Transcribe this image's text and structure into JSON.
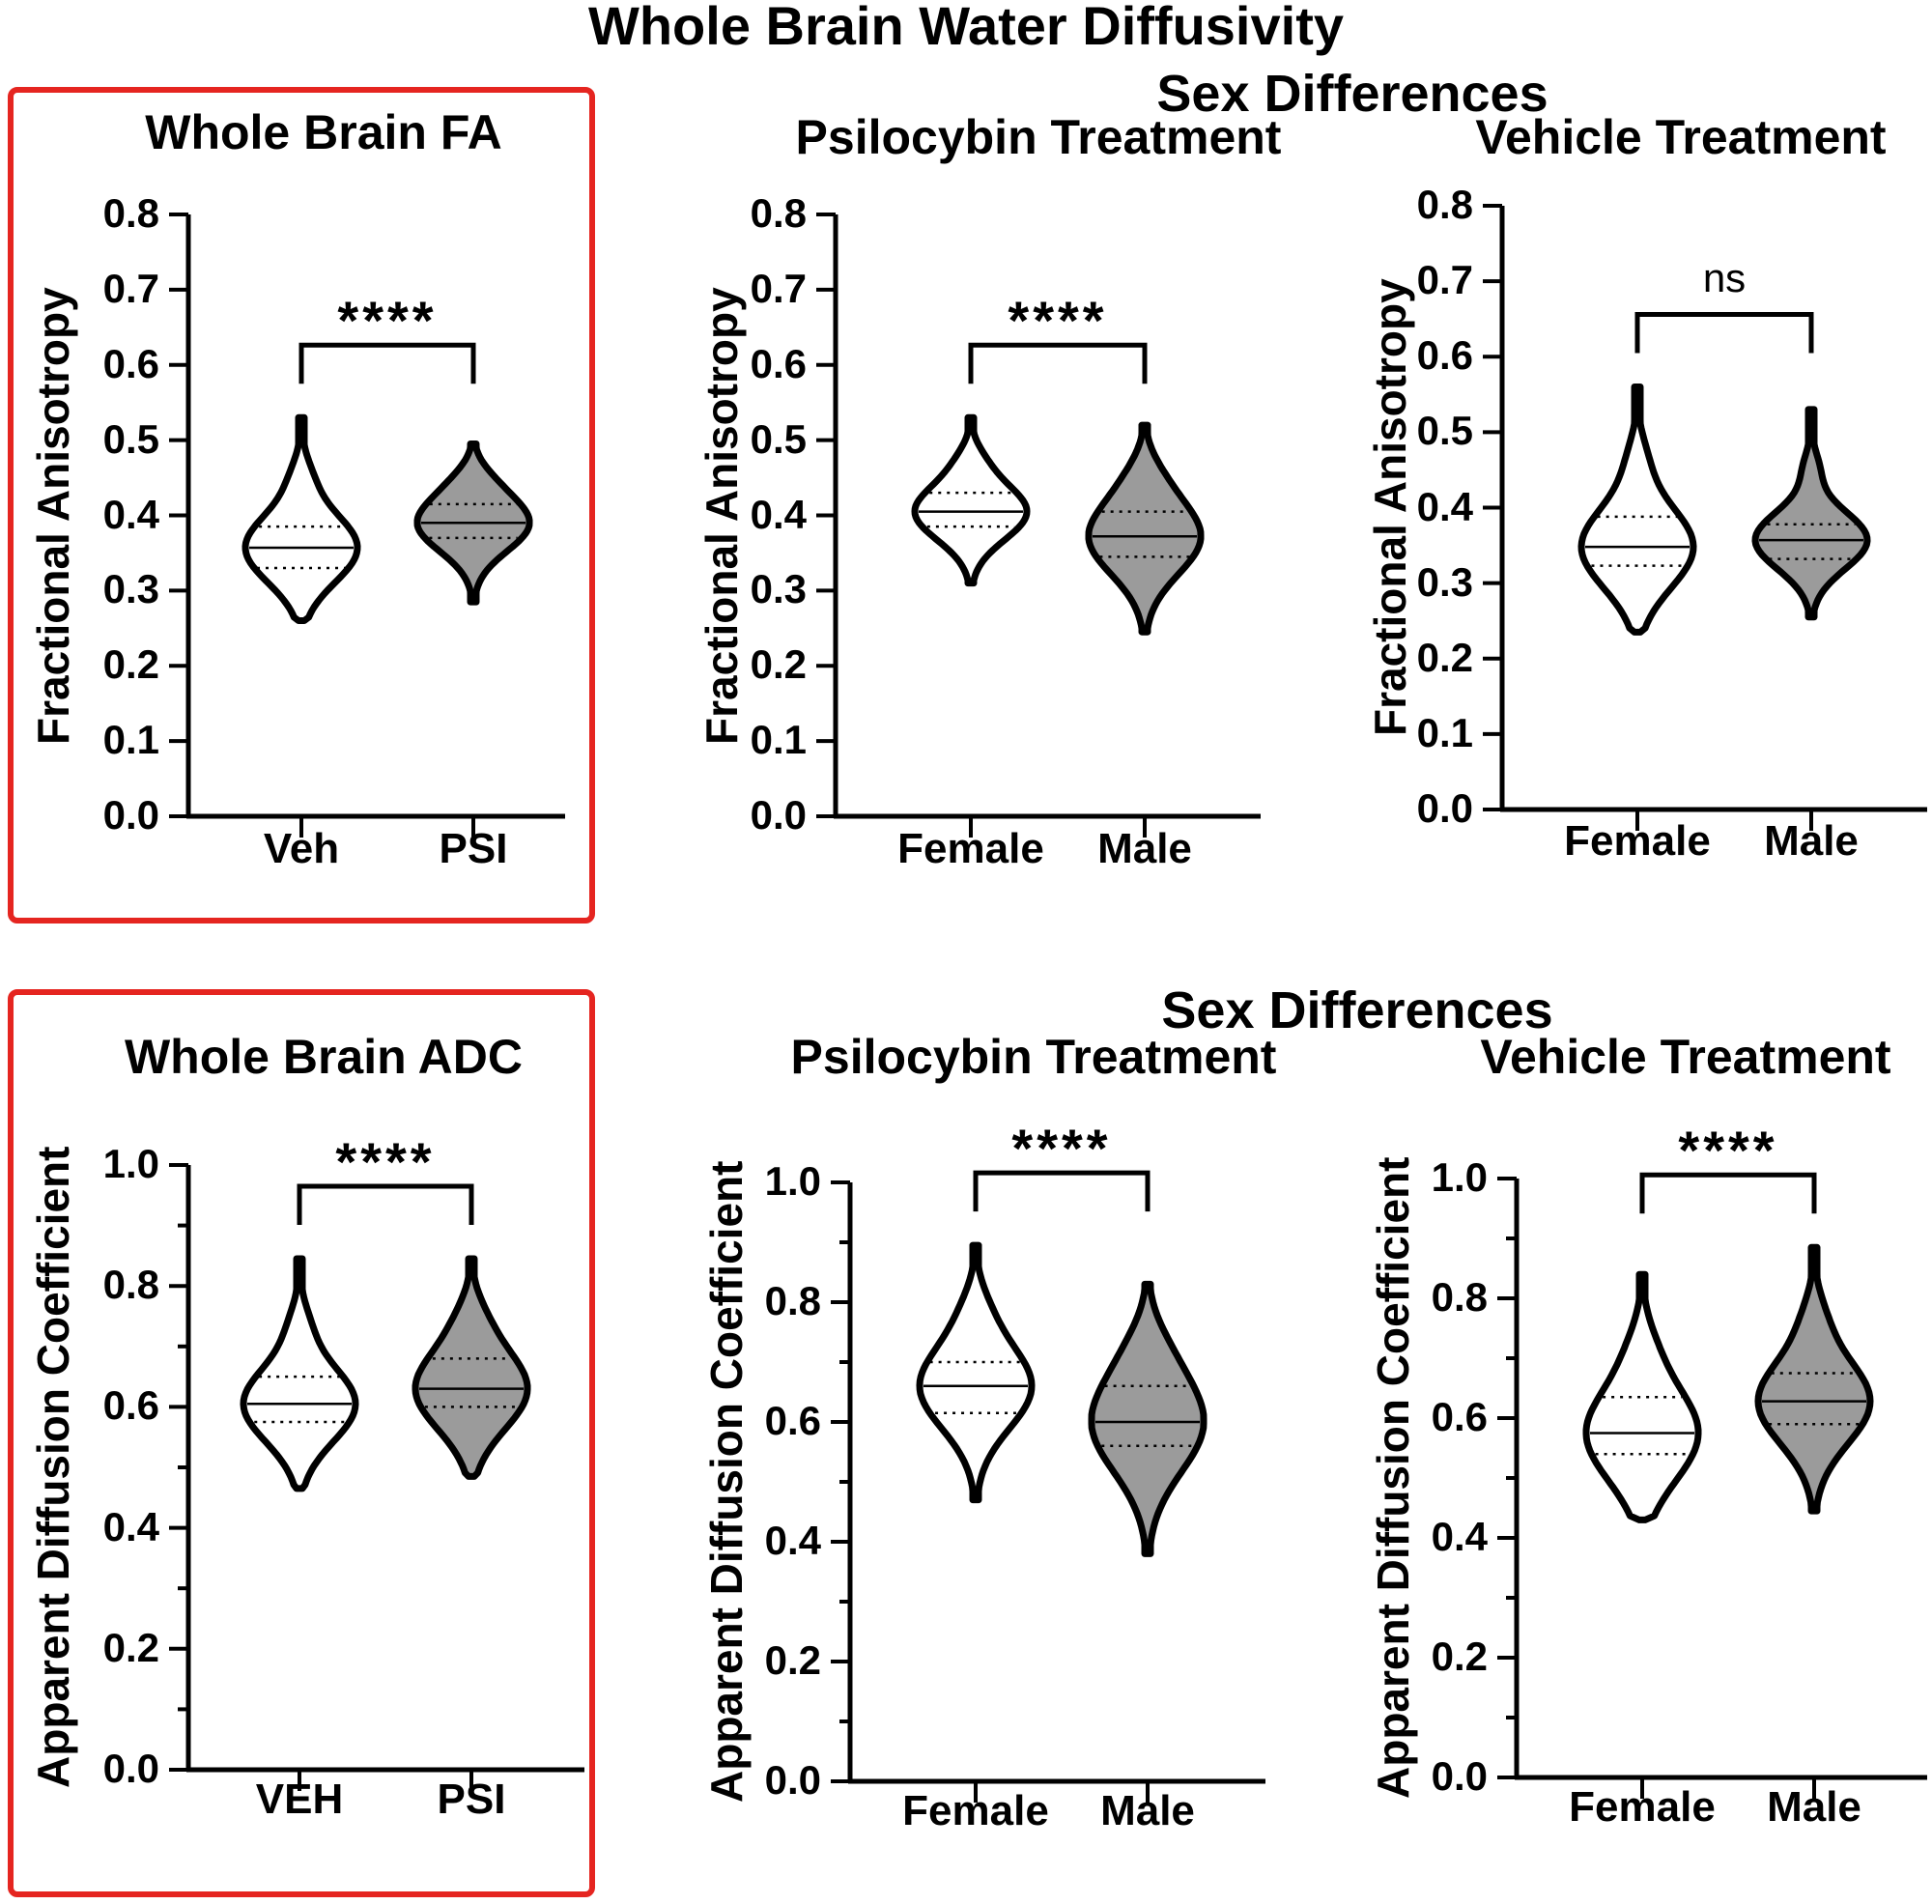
{
  "figure": {
    "title": "Whole Brain Water Diffusivity",
    "top_group_title": "Sex Differences",
    "bottom_group_title": "Sex Differences",
    "highlight_color": "#e52520",
    "fill_colors": {
      "white": "#ffffff",
      "gray": "#9b9b9b"
    }
  },
  "chart_data": [
    {
      "id": "fa_whole",
      "type": "violin",
      "title": "Whole Brain FA",
      "ylabel": "Fractional Anisotropy",
      "xlabel": "",
      "ylim": [
        0,
        0.8
      ],
      "yticks": [
        "0.0",
        "0.1",
        "0.2",
        "0.3",
        "0.4",
        "0.5",
        "0.6",
        "0.7",
        "0.8"
      ],
      "categories": [
        "Veh",
        "PSI"
      ],
      "fills": [
        "white",
        "gray"
      ],
      "median": [
        0.357,
        0.39
      ],
      "q1": [
        0.33,
        0.37
      ],
      "q3": [
        0.385,
        0.415
      ],
      "min": [
        0.26,
        0.285
      ],
      "max": [
        0.53,
        0.495
      ],
      "significance": "****"
    },
    {
      "id": "fa_psi_sex",
      "type": "violin",
      "title": "Psilocybin Treatment",
      "ylabel": "Fractional Anisotropy",
      "xlabel": "",
      "ylim": [
        0,
        0.8
      ],
      "yticks": [
        "0.0",
        "0.1",
        "0.2",
        "0.3",
        "0.4",
        "0.5",
        "0.6",
        "0.7",
        "0.8"
      ],
      "categories": [
        "Female",
        "Male"
      ],
      "fills": [
        "white",
        "gray"
      ],
      "median": [
        0.405,
        0.372
      ],
      "q1": [
        0.385,
        0.345
      ],
      "q3": [
        0.43,
        0.405
      ],
      "min": [
        0.31,
        0.245
      ],
      "max": [
        0.53,
        0.52
      ],
      "significance": "****"
    },
    {
      "id": "fa_veh_sex",
      "type": "violin",
      "title": "Vehicle Treatment",
      "ylabel": "Fractional Anisotropy",
      "xlabel": "",
      "ylim": [
        0,
        0.8
      ],
      "yticks": [
        "0.0",
        "0.1",
        "0.2",
        "0.3",
        "0.4",
        "0.5",
        "0.6",
        "0.7",
        "0.8"
      ],
      "categories": [
        "Female",
        "Male"
      ],
      "fills": [
        "white",
        "gray"
      ],
      "median": [
        0.348,
        0.357
      ],
      "q1": [
        0.323,
        0.332
      ],
      "q3": [
        0.388,
        0.378
      ],
      "min": [
        0.235,
        0.255
      ],
      "max": [
        0.56,
        0.53
      ],
      "significance": "ns"
    },
    {
      "id": "adc_whole",
      "type": "violin",
      "title": "Whole Brain ADC",
      "ylabel": "Apparent Diffusion Coefficient",
      "xlabel": "",
      "ylim": [
        0,
        1.0
      ],
      "yticks": [
        "0.0",
        "0.2",
        "0.4",
        "0.6",
        "0.8",
        "1.0"
      ],
      "categories": [
        "VEH",
        "PSI"
      ],
      "fills": [
        "white",
        "gray"
      ],
      "median": [
        0.605,
        0.63
      ],
      "q1": [
        0.575,
        0.6
      ],
      "q3": [
        0.65,
        0.68
      ],
      "min": [
        0.465,
        0.485
      ],
      "max": [
        0.845,
        0.845
      ],
      "significance": "****"
    },
    {
      "id": "adc_psi_sex",
      "type": "violin",
      "title": "Psilocybin Treatment",
      "ylabel": "Apparent Diffusion Coefficient",
      "xlabel": "",
      "ylim": [
        0,
        1.0
      ],
      "yticks": [
        "0.0",
        "0.2",
        "0.4",
        "0.6",
        "0.8",
        "1.0"
      ],
      "categories": [
        "Female",
        "Male"
      ],
      "fills": [
        "white",
        "gray"
      ],
      "median": [
        0.66,
        0.6
      ],
      "q1": [
        0.615,
        0.56
      ],
      "q3": [
        0.7,
        0.66
      ],
      "min": [
        0.47,
        0.38
      ],
      "max": [
        0.895,
        0.83
      ],
      "significance": "****"
    },
    {
      "id": "adc_veh_sex",
      "type": "violin",
      "title": "Vehicle Treatment",
      "ylabel": "Apparent Diffusion Coefficient",
      "xlabel": "",
      "ylim": [
        0,
        1.0
      ],
      "yticks": [
        "0.0",
        "0.2",
        "0.4",
        "0.6",
        "0.8",
        "1.0"
      ],
      "categories": [
        "Female",
        "Male"
      ],
      "fills": [
        "white",
        "gray"
      ],
      "median": [
        0.575,
        0.628
      ],
      "q1": [
        0.54,
        0.59
      ],
      "q3": [
        0.635,
        0.675
      ],
      "min": [
        0.43,
        0.445
      ],
      "max": [
        0.84,
        0.885
      ],
      "significance": "****"
    }
  ]
}
